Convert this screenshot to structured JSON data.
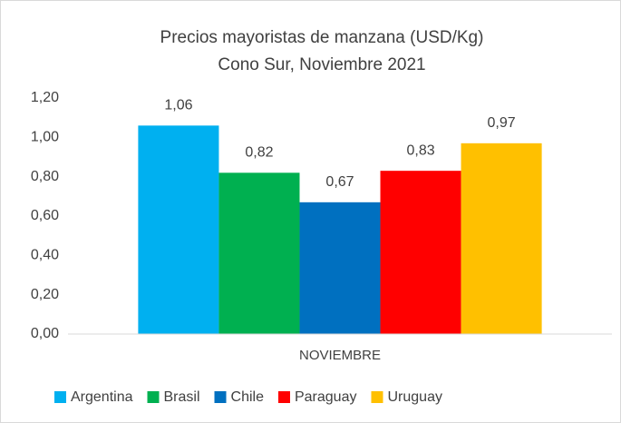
{
  "chart_data": {
    "type": "bar",
    "title": "Precios mayoristas de manzana (USD/Kg)",
    "subtitle": "Cono Sur, Noviembre  2021",
    "categories": [
      "NOVIEMBRE"
    ],
    "series": [
      {
        "name": "Argentina",
        "color": "#00b0f0",
        "values": [
          1.06
        ],
        "value_labels": [
          "1,06"
        ]
      },
      {
        "name": "Brasil",
        "color": "#00b050",
        "values": [
          0.82
        ],
        "value_labels": [
          "0,82"
        ]
      },
      {
        "name": "Chile",
        "color": "#0070c0",
        "values": [
          0.67
        ],
        "value_labels": [
          "0,67"
        ]
      },
      {
        "name": "Paraguay",
        "color": "#ff0000",
        "values": [
          0.83
        ],
        "value_labels": [
          "0,83"
        ]
      },
      {
        "name": "Uruguay",
        "color": "#ffc000",
        "values": [
          0.97
        ],
        "value_labels": [
          "0,97"
        ]
      }
    ],
    "ylim": [
      0,
      1.2
    ],
    "yticks": [
      {
        "value": 0,
        "label": "0,00"
      },
      {
        "value": 0.2,
        "label": "0,20"
      },
      {
        "value": 0.4,
        "label": "0,40"
      },
      {
        "value": 0.6,
        "label": "0,60"
      },
      {
        "value": 0.8,
        "label": "0,80"
      },
      {
        "value": 1.0,
        "label": "1,00"
      },
      {
        "value": 1.2,
        "label": "1,20"
      }
    ],
    "grid": false,
    "legend": "bottom"
  }
}
